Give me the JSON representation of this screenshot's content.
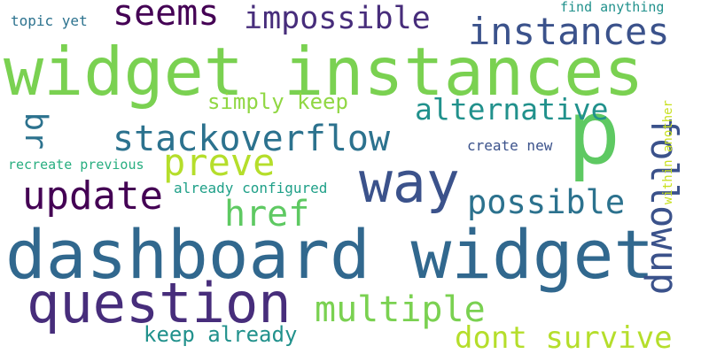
{
  "word_cloud": {
    "words": [
      {
        "id": "dashboard-widget",
        "text": "dashboard widget",
        "color": "#31688e"
      },
      {
        "id": "widget-instances",
        "text": "widget instances",
        "color": "#7ad151"
      },
      {
        "id": "question",
        "text": "question",
        "color": "#472d7b"
      },
      {
        "id": "way",
        "text": "way",
        "color": "#3b528b"
      },
      {
        "id": "p",
        "text": "p",
        "color": "#5ec962"
      },
      {
        "id": "followup",
        "text": "followup",
        "color": "#3b528b"
      },
      {
        "id": "instances",
        "text": "instances",
        "color": "#3b528b"
      },
      {
        "id": "seems",
        "text": "seems",
        "color": "#440154"
      },
      {
        "id": "impossible",
        "text": "impossible",
        "color": "#472d7b"
      },
      {
        "id": "stackoverflow",
        "text": "stackoverflow",
        "color": "#2c728e"
      },
      {
        "id": "alternative",
        "text": "alternative",
        "color": "#21918c"
      },
      {
        "id": "preve",
        "text": "preve",
        "color": "#b5de2b"
      },
      {
        "id": "update",
        "text": "update",
        "color": "#440154"
      },
      {
        "id": "href",
        "text": "href",
        "color": "#5ec962"
      },
      {
        "id": "possible",
        "text": "possible",
        "color": "#2c728e"
      },
      {
        "id": "multiple",
        "text": "multiple",
        "color": "#7ad151"
      },
      {
        "id": "dont-survive",
        "text": "dont survive",
        "color": "#b5de2b"
      },
      {
        "id": "keep-already",
        "text": "keep already",
        "color": "#21918c"
      },
      {
        "id": "simply-keep",
        "text": "simply keep",
        "color": "#90d743"
      },
      {
        "id": "br",
        "text": "br",
        "color": "#2c728e"
      },
      {
        "id": "topic-yet",
        "text": "topic yet",
        "color": "#2c728e"
      },
      {
        "id": "find-anything",
        "text": "find anything",
        "color": "#21918c"
      },
      {
        "id": "create-new",
        "text": "create new",
        "color": "#3b528b"
      },
      {
        "id": "recreate-previous",
        "text": "recreate previous",
        "color": "#28ae80"
      },
      {
        "id": "already-configured",
        "text": "already configured",
        "color": "#1fa088"
      },
      {
        "id": "within-another",
        "text": "within another",
        "color": "#c8e020"
      }
    ]
  }
}
